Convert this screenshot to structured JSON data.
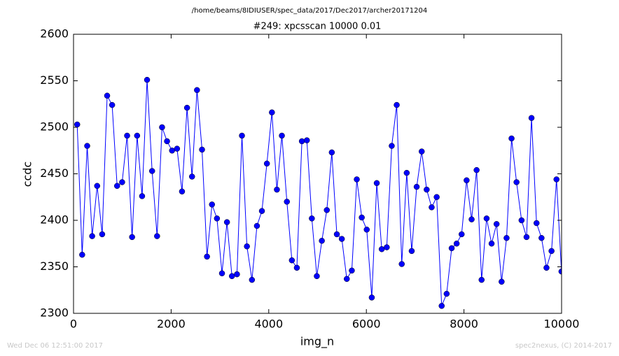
{
  "chart_data": {
    "type": "line",
    "suptitle": "/home/beams/8IDIUSER/spec_data/2017/Dec2017/archer20171204",
    "title": "#249: xpcsscan 10000 0.01",
    "x_label": "img_n",
    "y_label": "ccdc",
    "footer_left": "Wed Dec 06 12:51:00 2017",
    "footer_right": "spec2nexus, (C) 2014-2017",
    "xlim": [
      0,
      10000
    ],
    "xticks": [
      0,
      2000,
      4000,
      6000,
      8000,
      10000
    ],
    "ylim": [
      2300,
      2600
    ],
    "yticks": [
      2300,
      2350,
      2400,
      2450,
      2500,
      2550,
      2600
    ],
    "x": [
      75,
      177,
      280,
      382,
      484,
      587,
      689,
      791,
      893,
      996,
      1098,
      1200,
      1303,
      1405,
      1507,
      1610,
      1712,
      1814,
      1916,
      2019,
      2121,
      2223,
      2326,
      2428,
      2530,
      2633,
      2735,
      2837,
      2939,
      3042,
      3144,
      3246,
      3349,
      3451,
      3553,
      3656,
      3758,
      3860,
      3962,
      4065,
      4167,
      4269,
      4372,
      4474,
      4576,
      4679,
      4781,
      4883,
      4985,
      5088,
      5190,
      5292,
      5395,
      5497,
      5599,
      5702,
      5804,
      5906,
      6008,
      6111,
      6213,
      6315,
      6418,
      6520,
      6622,
      6725,
      6827,
      6929,
      7031,
      7134,
      7236,
      7338,
      7441,
      7543,
      7645,
      7748,
      7850,
      7952,
      8054,
      8157,
      8259,
      8361,
      8464,
      8566,
      8668,
      8771,
      8873,
      8975,
      9077,
      9180,
      9282,
      9384,
      9487,
      9589,
      9691,
      9794,
      9896,
      9998
    ],
    "series": [
      {
        "color": "#0000ff",
        "values": [
          2503,
          2363,
          2480,
          2383,
          2437,
          2385,
          2534,
          2524,
          2437,
          2441,
          2491,
          2382,
          2491,
          2426,
          2551,
          2453,
          2383,
          2500,
          2485,
          2475,
          2477,
          2431,
          2521,
          2447,
          2540,
          2476,
          2361,
          2417,
          2402,
          2343,
          2398,
          2340,
          2342,
          2491,
          2372,
          2336,
          2394,
          2410,
          2461,
          2516,
          2433,
          2491,
          2420,
          2357,
          2349,
          2485,
          2486,
          2402,
          2340,
          2378,
          2411,
          2473,
          2385,
          2380,
          2337,
          2346,
          2444,
          2403,
          2390,
          2317,
          2440,
          2369,
          2371,
          2480,
          2524,
          2353,
          2451,
          2367,
          2436,
          2474,
          2433,
          2414,
          2425,
          2308,
          2321,
          2370,
          2375,
          2385,
          2443,
          2401,
          2454,
          2336,
          2402,
          2375,
          2396,
          2334,
          2381,
          2488,
          2441,
          2400,
          2382,
          2510,
          2397,
          2381,
          2349,
          2367,
          2444,
          2345
        ]
      }
    ]
  }
}
